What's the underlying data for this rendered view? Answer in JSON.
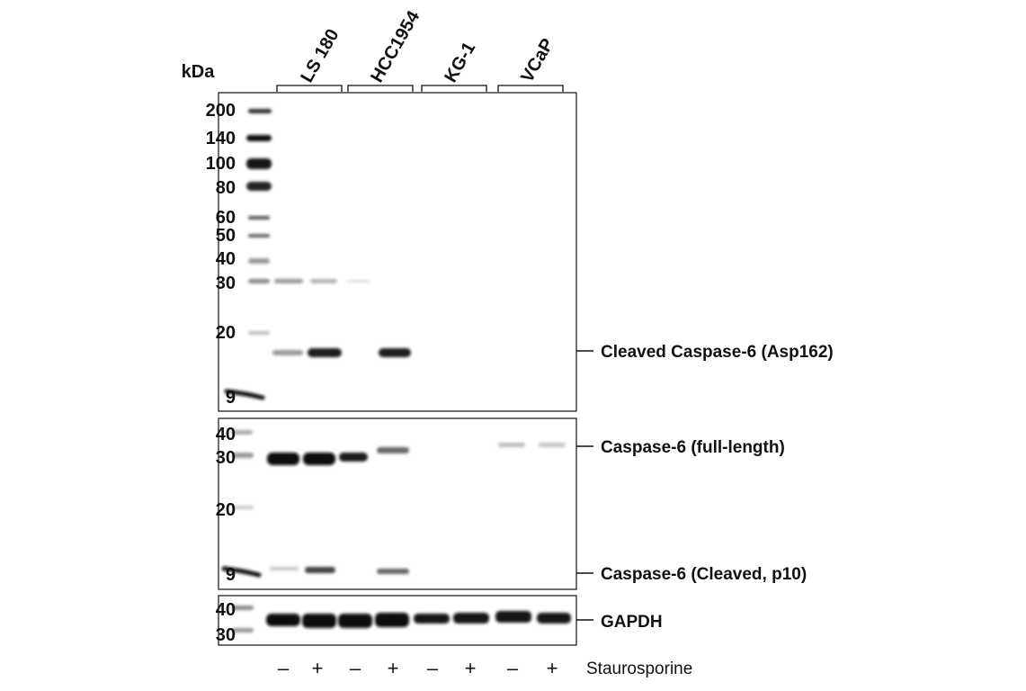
{
  "figure": {
    "unit_label": "kDa",
    "cell_lines": [
      {
        "name": "LS 180"
      },
      {
        "name": "HCC1954"
      },
      {
        "name": "KG-1"
      },
      {
        "name": "VCaP"
      }
    ],
    "treatment": {
      "name": "Staurosporine",
      "signs": [
        "–",
        "+",
        "–",
        "+",
        "–",
        "+",
        "–",
        "+"
      ]
    },
    "panels": [
      {
        "id": "cleaved-caspase6",
        "markers": [
          "200",
          "140",
          "100",
          "80",
          "60",
          "50",
          "40",
          "30",
          "20",
          "9"
        ],
        "targets": [
          "Cleaved Caspase-6 (Asp162)"
        ],
        "band_intensity": {
          "p30": [
            0.35,
            0.25,
            0.05,
            0,
            0,
            0,
            0,
            0
          ],
          "p17": [
            0.35,
            0.9,
            0,
            0.85,
            0,
            0,
            0,
            0
          ]
        }
      },
      {
        "id": "caspase6",
        "markers": [
          "40",
          "30",
          "20",
          "9"
        ],
        "targets": [
          "Caspase-6 (full-length)",
          "Caspase-6 (Cleaved, p10)"
        ],
        "band_intensity": {
          "full_length": [
            1.0,
            1.0,
            0.85,
            0.5,
            0,
            0,
            0.25,
            0.2
          ],
          "p10": [
            0.2,
            0.7,
            0,
            0.55,
            0,
            0,
            0,
            0
          ]
        }
      },
      {
        "id": "gapdh",
        "markers": [
          "40",
          "30"
        ],
        "targets": [
          "GAPDH"
        ],
        "band_intensity": {
          "gapdh": [
            1,
            1,
            1,
            1,
            0.95,
            0.95,
            0.95,
            0.9
          ]
        }
      }
    ]
  }
}
